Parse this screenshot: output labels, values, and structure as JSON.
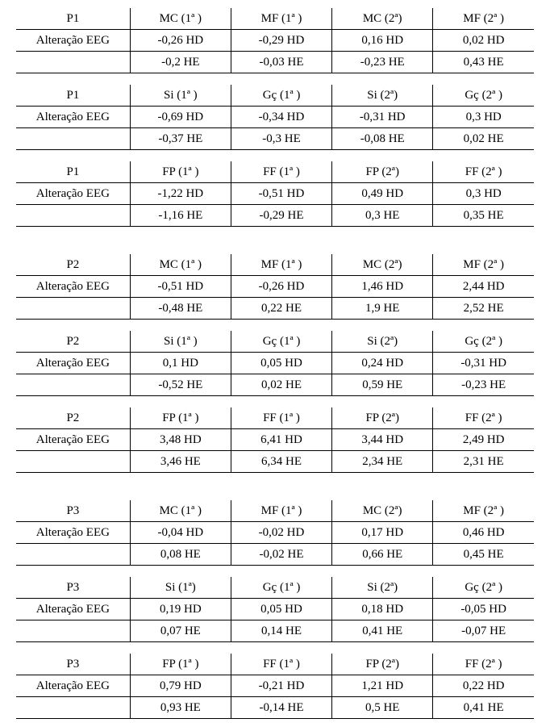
{
  "row_label": "Alteração EEG",
  "header_sets": {
    "mc_mf": [
      "MC (1ª )",
      "MF (1ª )",
      "MC (2ª)",
      "MF (2ª )"
    ],
    "si_gc": [
      "Si (1ª )",
      "Gç (1ª )",
      "Si (2ª)",
      "Gç (2ª )"
    ],
    "si_gc_alt": [
      "Si (1ª)",
      "Gç (1ª )",
      "Si (2ª)",
      "Gç (2ª )"
    ],
    "fp_ff": [
      "FP (1ª )",
      "FF (1ª )",
      "FP (2ª)",
      "FF (2ª )"
    ]
  },
  "blocks": [
    {
      "participant": "P1",
      "sections": [
        {
          "headers": "mc_mf",
          "hd": [
            "-0,26 HD",
            "-0,29 HD",
            "0,16 HD",
            "0,02 HD"
          ],
          "he": [
            "-0,2 HE",
            "-0,03 HE",
            "-0,23 HE",
            "0,43 HE"
          ]
        },
        {
          "headers": "si_gc",
          "hd": [
            "-0,69 HD",
            "-0,34 HD",
            "-0,31 HD",
            "0,3 HD"
          ],
          "he": [
            "-0,37 HE",
            "-0,3 HE",
            "-0,08 HE",
            "0,02 HE"
          ]
        },
        {
          "headers": "fp_ff",
          "hd": [
            "-1,22 HD",
            "-0,51 HD",
            "0,49 HD",
            "0,3 HD"
          ],
          "he": [
            "-1,16 HE",
            "-0,29 HE",
            "0,3 HE",
            "0,35 HE"
          ]
        }
      ]
    },
    {
      "participant": "P2",
      "sections": [
        {
          "headers": "mc_mf",
          "hd": [
            "-0,51 HD",
            "-0,26 HD",
            "1,46 HD",
            "2,44 HD"
          ],
          "he": [
            "-0,48 HE",
            "0,22 HE",
            "1,9 HE",
            "2,52 HE"
          ]
        },
        {
          "headers": "si_gc",
          "hd": [
            "0,1 HD",
            "0,05 HD",
            "0,24 HD",
            "-0,31 HD"
          ],
          "he": [
            "-0,52 HE",
            "0,02 HE",
            "0,59 HE",
            "-0,23 HE"
          ]
        },
        {
          "headers": "fp_ff",
          "hd": [
            "3,48 HD",
            "6,41 HD",
            "3,44 HD",
            "2,49 HD"
          ],
          "he": [
            "3,46 HE",
            "6,34 HE",
            "2,34 HE",
            "2,31 HE"
          ]
        }
      ]
    },
    {
      "participant": "P3",
      "sections": [
        {
          "headers": "mc_mf",
          "hd": [
            "-0,04 HD",
            "-0,02 HD",
            "0,17 HD",
            "0,46 HD"
          ],
          "he": [
            "0,08 HE",
            "-0,02 HE",
            "0,66 HE",
            "0,45 HE"
          ]
        },
        {
          "headers": "si_gc_alt",
          "hd": [
            "0,19 HD",
            "0,05 HD",
            "0,18 HD",
            "-0,05 HD"
          ],
          "he": [
            "0,07 HE",
            "0,14 HE",
            "0,41 HE",
            "-0,07 HE"
          ]
        },
        {
          "headers": "fp_ff",
          "hd": [
            "0,79 HD",
            "-0,21 HD",
            "1,21 HD",
            "0,22 HD"
          ],
          "he": [
            "0,93 HE",
            "-0,14 HE",
            "0,5 HE",
            "0,41 HE"
          ]
        }
      ]
    }
  ]
}
